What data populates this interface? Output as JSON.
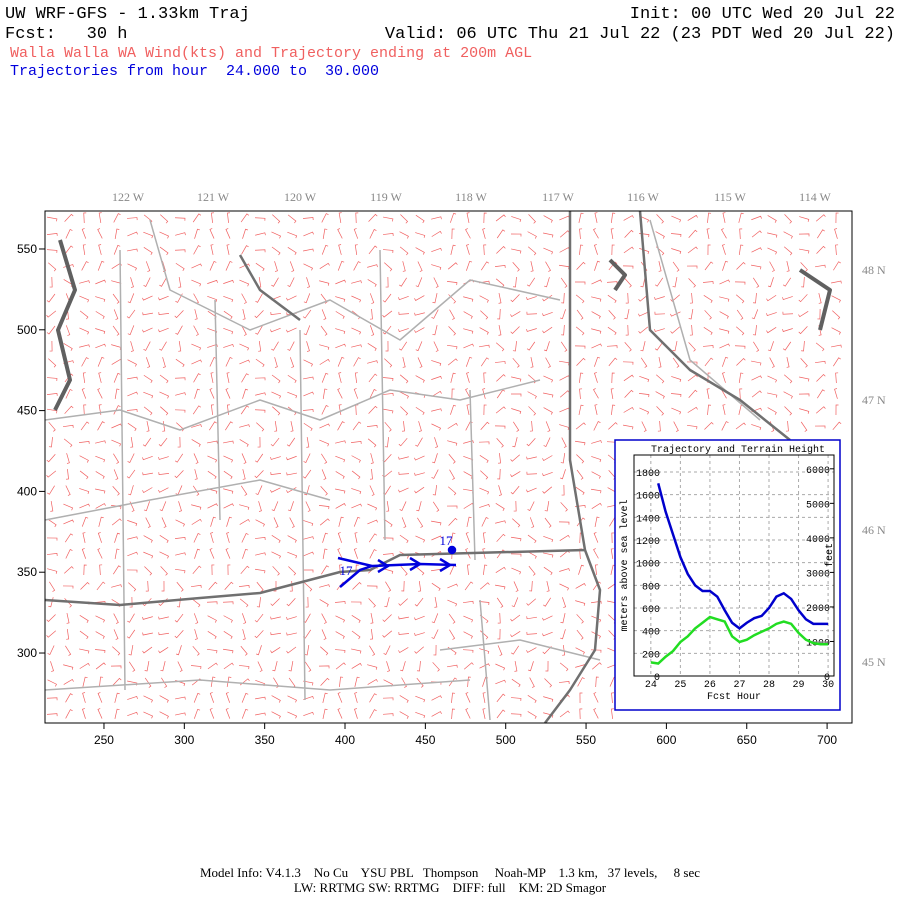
{
  "header": {
    "title": "UW WRF-GFS - 1.33km Traj",
    "init": "Init: 00 UTC Wed 20 Jul 22",
    "fcst": "Fcst:   30 h",
    "valid": "Valid: 06 UTC Thu 21 Jul 22 (23 PDT Wed 20 Jul 22)",
    "subtitle": "Walla Walla WA Wind(kts) and Trajectory ending at 200m AGL",
    "trajectories": "Trajectories from hour  24.000 to  30.000"
  },
  "map": {
    "xlim": [
      213.3,
      715.5
    ],
    "ylim": [
      256.7,
      573.5
    ],
    "xticks": [
      250,
      300,
      350,
      400,
      450,
      500,
      550,
      600,
      650,
      700
    ],
    "yticks": [
      300,
      350,
      400,
      450,
      500,
      550
    ],
    "lon_labels": [
      "122 W",
      "121 W",
      "120 W",
      "119 W",
      "118 W",
      "117 W",
      "116 W",
      "115 W",
      "114 W"
    ],
    "lat_labels": [
      "48 N",
      "47 N",
      "46 N",
      "45 N"
    ],
    "trajectory_labels": [
      "17",
      "17"
    ]
  },
  "chart_data": {
    "type": "line",
    "title": "Trajectory and Terrain Height",
    "x_label": "Fcst Hour",
    "y_label": "meters above sea level",
    "y2_label": "feet",
    "x": [
      24,
      24.25,
      24.5,
      24.75,
      25,
      25.25,
      25.5,
      25.75,
      26,
      26.25,
      26.5,
      26.75,
      27,
      27.25,
      27.5,
      27.75,
      28,
      28.25,
      28.5,
      28.75,
      29,
      29.25,
      29.5,
      29.75,
      30
    ],
    "xlim": [
      23.43,
      30.2
    ],
    "xticks": [
      24,
      25,
      26,
      27,
      28,
      29,
      30
    ],
    "ylim": [
      0,
      1950
    ],
    "yticks": [
      0,
      200,
      400,
      600,
      800,
      1000,
      1200,
      1400,
      1600,
      1800
    ],
    "y2lim": [
      0,
      6400
    ],
    "y2ticks": [
      0,
      1000,
      2000,
      3000,
      4000,
      5000,
      6000
    ],
    "grid": true,
    "series": [
      {
        "name": "Trajectory",
        "color": "#0000cc",
        "values": [
          null,
          1700,
          1450,
          1250,
          1050,
          900,
          800,
          750,
          750,
          700,
          580,
          470,
          420,
          470,
          510,
          530,
          600,
          700,
          730,
          680,
          580,
          500,
          460,
          460,
          460
        ]
      },
      {
        "name": "Terrain",
        "color": "#22dd22",
        "values": [
          120,
          110,
          170,
          220,
          300,
          350,
          420,
          470,
          520,
          500,
          480,
          350,
          300,
          320,
          360,
          390,
          420,
          460,
          480,
          460,
          380,
          320,
          290,
          280,
          280
        ]
      }
    ]
  },
  "footer": {
    "line1": "Model Info: V4.1.3    No Cu    YSU PBL   Thompson     Noah-MP    1.3 km,   37 levels,     8 sec",
    "line2": "LW: RRTMG SW: RRTMG    DIFF: full    KM: 2D Smagor"
  }
}
